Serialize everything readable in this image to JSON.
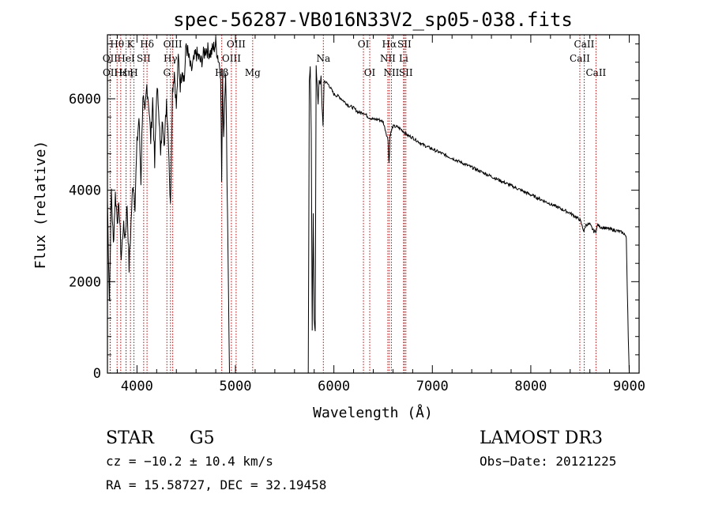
{
  "chart_data": {
    "type": "line",
    "title": "spec-56287-VB016N33V2_sp05-038.fits",
    "xlabel": "Wavelength (Å)",
    "ylabel": "Flux (relative)",
    "xlim": [
      3700,
      9100
    ],
    "ylim": [
      0,
      7400
    ],
    "x_ticks": [
      4000,
      5000,
      6000,
      7000,
      8000,
      9000
    ],
    "x_tick_labels": [
      "4000",
      "5000",
      "6000",
      "7000",
      "8000",
      "9000"
    ],
    "y_ticks": [
      0,
      2000,
      4000,
      6000
    ],
    "y_tick_labels": [
      "0",
      "2000",
      "4000",
      "6000"
    ],
    "series": [
      {
        "name": "spectrum",
        "color": "#000000",
        "x": [
          3700,
          3720,
          3740,
          3760,
          3780,
          3800,
          3820,
          3840,
          3860,
          3880,
          3900,
          3920,
          3940,
          3960,
          3980,
          4000,
          4020,
          4040,
          4060,
          4080,
          4100,
          4120,
          4140,
          4160,
          4180,
          4200,
          4220,
          4240,
          4260,
          4280,
          4300,
          4320,
          4340,
          4360,
          4380,
          4400,
          4420,
          4440,
          4460,
          4480,
          4500,
          4550,
          4600,
          4650,
          4700,
          4750,
          4800,
          4850,
          4860,
          4870,
          4880,
          4900,
          4920,
          4940,
          4960,
          4980,
          5000,
          5100,
          5200,
          5300,
          5400,
          5500,
          5600,
          5700,
          5740,
          5750,
          5760,
          5770,
          5780,
          5790,
          5800,
          5810,
          5820,
          5830,
          5840,
          5850,
          5860,
          5870,
          5880,
          5890,
          5900,
          5950,
          6000,
          6050,
          6100,
          6150,
          6200,
          6250,
          6300,
          6350,
          6400,
          6450,
          6500,
          6550,
          6560,
          6565,
          6570,
          6600,
          6650,
          6700,
          6750,
          6800,
          6900,
          7000,
          7100,
          7200,
          7300,
          7400,
          7500,
          7600,
          7700,
          7800,
          7900,
          8000,
          8100,
          8200,
          8300,
          8400,
          8500,
          8540,
          8560,
          8600,
          8640,
          8660,
          8680,
          8700,
          8800,
          8900,
          8950,
          8970,
          8990,
          9000
        ],
        "y": [
          3800,
          1600,
          4000,
          2800,
          3900,
          3400,
          3600,
          2500,
          3200,
          3000,
          3700,
          2300,
          3300,
          4200,
          3700,
          5000,
          5600,
          4200,
          6100,
          5600,
          6300,
          5900,
          5100,
          6000,
          4500,
          6200,
          5900,
          4700,
          5600,
          5000,
          6000,
          5100,
          3600,
          6200,
          6600,
          5800,
          6900,
          6300,
          6700,
          6400,
          7200,
          6600,
          7000,
          6800,
          7100,
          7000,
          7200,
          6600,
          4200,
          6500,
          5200,
          6700,
          3500,
          0,
          0,
          0,
          0,
          0,
          0,
          0,
          0,
          0,
          0,
          0,
          0,
          6400,
          6700,
          5200,
          900,
          3500,
          1200,
          900,
          6700,
          6300,
          5900,
          6400,
          6300,
          6500,
          5800,
          5400,
          6400,
          6300,
          6100,
          6050,
          5950,
          5850,
          5800,
          5700,
          5700,
          5600,
          5550,
          5550,
          5500,
          5100,
          4600,
          4800,
          5200,
          5400,
          5380,
          5300,
          5200,
          5150,
          5000,
          4900,
          4800,
          4700,
          4600,
          4500,
          4400,
          4300,
          4200,
          4100,
          4000,
          3900,
          3800,
          3700,
          3600,
          3500,
          3350,
          3100,
          3250,
          3250,
          3100,
          3100,
          3250,
          3200,
          3150,
          3100,
          3050,
          2950,
          800,
          0
        ]
      }
    ],
    "line_markers": [
      {
        "label": "Hθ",
        "x": 3798,
        "row": 0
      },
      {
        "label": "OII",
        "x": 3727,
        "row": 1
      },
      {
        "label": "OII",
        "x": 3729,
        "row": 2
      },
      {
        "label": "Hε",
        "x": 3835,
        "row": 2
      },
      {
        "label": "HeI",
        "x": 3889,
        "row": 1
      },
      {
        "label": "Hη",
        "x": 3889,
        "row": 2
      },
      {
        "label": "K",
        "x": 3934,
        "row": 0
      },
      {
        "label": "SII",
        "x": 4068,
        "row": 1
      },
      {
        "label": "H",
        "x": 3969,
        "row": 2
      },
      {
        "label": "Hδ",
        "x": 4102,
        "row": 0
      },
      {
        "label": "OIII",
        "x": 4363,
        "row": 0
      },
      {
        "label": "Hγ",
        "x": 4340,
        "row": 1
      },
      {
        "label": "G",
        "x": 4304,
        "row": 2
      },
      {
        "label": "Hβ",
        "x": 4861,
        "row": 2
      },
      {
        "label": "OIII",
        "x": 5007,
        "row": 0
      },
      {
        "label": "OIII",
        "x": 4959,
        "row": 1
      },
      {
        "label": "Mg",
        "x": 5175,
        "row": 2
      },
      {
        "label": "Na",
        "x": 5893,
        "row": 1
      },
      {
        "label": "OI",
        "x": 6300,
        "row": 0
      },
      {
        "label": "OI",
        "x": 6364,
        "row": 2
      },
      {
        "label": "Hα",
        "x": 6563,
        "row": 0
      },
      {
        "label": "NII",
        "x": 6548,
        "row": 1
      },
      {
        "label": "NII",
        "x": 6584,
        "row": 2
      },
      {
        "label": "SII",
        "x": 6716,
        "row": 0
      },
      {
        "label": "Li",
        "x": 6708,
        "row": 1
      },
      {
        "label": "SII",
        "x": 6731,
        "row": 2
      },
      {
        "label": "CaII",
        "x": 8542,
        "row": 0
      },
      {
        "label": "CaII",
        "x": 8498,
        "row": 1
      },
      {
        "label": "CaII",
        "x": 8662,
        "row": 2
      }
    ],
    "marker_color": "#cc0000",
    "annotations": {
      "object_class": "STAR",
      "subclass": "G5",
      "survey": "LAMOST DR3",
      "redshift": "cz = −10.2 ± 10.4 km/s",
      "obs_date": "Obs−Date: 20121225",
      "coords": "RA =  15.58727, DEC =  32.19458"
    }
  }
}
